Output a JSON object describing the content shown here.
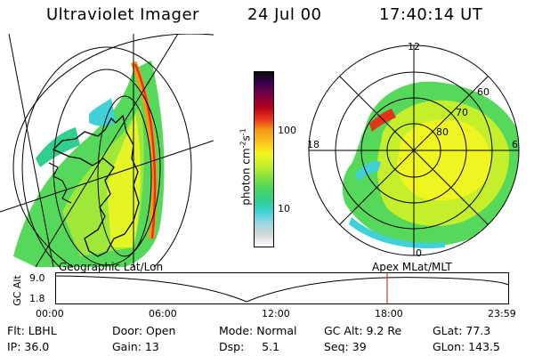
{
  "header": {
    "instrument": "Ultraviolet Imager",
    "date": "24 Jul 00",
    "time": "17:40:14 UT"
  },
  "colorbar": {
    "label_main": "photon cm",
    "label_exp1": "-2",
    "label_mid": "s",
    "label_exp2": "-1",
    "ticks": [
      "100",
      "10"
    ],
    "colors": [
      "#fdfdfd",
      "#d6d6d6",
      "#9ad7e4",
      "#3fd0d8",
      "#2fcf8e",
      "#49d65d",
      "#86e13f",
      "#c6ef2b",
      "#f5f51f",
      "#f8c11d",
      "#f59a17",
      "#e5331b",
      "#b2001e",
      "#7a0043",
      "#3c0052",
      "#0b0b0b"
    ]
  },
  "polar": {
    "mlt_labels": {
      "top": "12",
      "left": "18",
      "right": "6",
      "bottom": "0"
    },
    "lat_labels": [
      "60",
      "70",
      "80"
    ]
  },
  "timeline": {
    "axis_label": "GC Alt",
    "geo_label": "Geographic Lat/Lon",
    "apex_label": "Apex MLat/MLT",
    "y_ticks": [
      "9.0",
      "1.8"
    ],
    "x_ticks": [
      "00:00",
      "06:00",
      "12:00",
      "18:00",
      "23:59"
    ],
    "marker_color": "#c0392b"
  },
  "info": {
    "row1": {
      "flt": "Flt: LBHL",
      "door": "Door: Open",
      "mode": "Mode: Normal",
      "gcalt": "GC Alt: 9.2 Re",
      "glat": "GLat:  77.3"
    },
    "row2": {
      "ip": "IP: 36.0",
      "gain": "Gain: 13",
      "dsp": "Dsp:     5.1",
      "seq": "Seq: 39",
      "glon": "GLon: 143.5"
    }
  }
}
